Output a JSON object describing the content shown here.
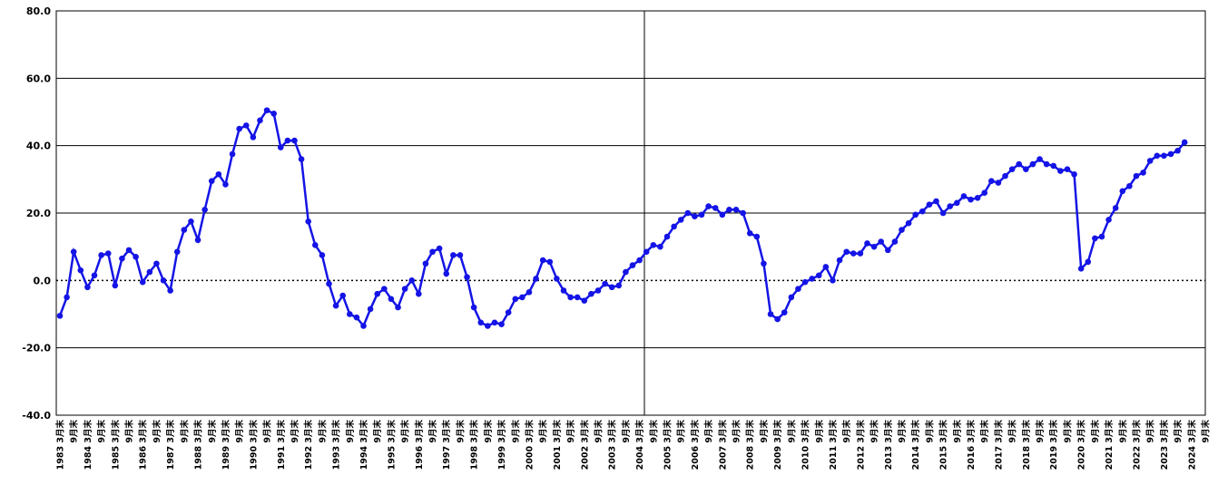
{
  "chart_data": {
    "type": "line",
    "categories": [
      "1983 3月末",
      null,
      "9月末",
      null,
      "1984 3月末",
      null,
      "9月末",
      null,
      "1985 3月末",
      null,
      "9月末",
      null,
      "1986 3月末",
      null,
      "9月末",
      null,
      "1987 3月末",
      null,
      "9月末",
      null,
      "1988 3月末",
      null,
      "9月末",
      null,
      "1989 3月末",
      null,
      "9月末",
      null,
      "1990 3月末",
      null,
      "9月末",
      null,
      "1991 3月末",
      null,
      "9月末",
      null,
      "1992 3月末",
      null,
      "9月末",
      null,
      "1993 3月末",
      null,
      "9月末",
      null,
      "1994 3月末",
      null,
      "9月末",
      null,
      "1995 3月末",
      null,
      "9月末",
      null,
      "1996 3月末",
      null,
      "9月末",
      null,
      "1997 3月末",
      null,
      "9月末",
      null,
      "1998 3月末",
      null,
      "9月末",
      null,
      "1999 3月末",
      null,
      "9月末",
      null,
      "2000 3月末",
      null,
      "9月末",
      null,
      "2001 3月末",
      null,
      "9月末",
      null,
      "2002 3月末",
      null,
      "9月末",
      null,
      "2003 3月末",
      null,
      "9月末",
      null,
      "2004 3月末",
      null,
      "9月末",
      null,
      "2005 3月末",
      null,
      "9月末",
      null,
      "2006 3月末",
      null,
      "9月末",
      null,
      "2007 3月末",
      null,
      "9月末",
      null,
      "2008 3月末",
      null,
      "9月末",
      null,
      "2009 3月末",
      null,
      "9月末",
      null,
      "2010 3月末",
      null,
      "9月末",
      null,
      "2011 3月末",
      null,
      "9月末",
      null,
      "2012 3月末",
      null,
      "9月末",
      null,
      "2013 3月末",
      null,
      "9月末",
      null,
      "2014 3月末",
      null,
      "9月末",
      null,
      "2015 3月末",
      null,
      "9月末",
      null,
      "2016 3月末",
      null,
      "9月末",
      null,
      "2017 3月末",
      null,
      "9月末",
      null,
      "2018 3月末",
      null,
      "9月末",
      null,
      "2019 3月末",
      null,
      "9月末",
      null,
      "2020 3月末",
      null,
      "9月末",
      null,
      "2021 3月末",
      null,
      "9月末",
      null,
      "2022 3月末",
      null,
      "9月末",
      null,
      "2023 3月末",
      null,
      "9月末",
      null,
      "2024 3月末",
      null,
      "9月末"
    ],
    "series": [
      {
        "color": "#1414e6",
        "values": [
          -10.5,
          -5,
          8.5,
          3,
          -2,
          1.5,
          7.5,
          8,
          -1.5,
          6.5,
          9,
          7,
          -0.5,
          2.5,
          5,
          0,
          -3,
          8.5,
          15,
          17.5,
          12,
          21,
          29.5,
          31.5,
          28.5,
          37.5,
          45,
          46,
          42.5,
          47.5,
          50.5,
          49.5,
          39.5,
          41.5,
          41.5,
          36,
          17.5,
          10.5,
          7.5,
          -1,
          -7.5,
          -4.5,
          -10,
          -11,
          -13.5,
          -8.5,
          -4,
          -2.5,
          -5.5,
          -8,
          -2.5,
          0,
          -4,
          5,
          8.5,
          9.5,
          2,
          7.5,
          7.5,
          1,
          -8,
          -12.5,
          -13.5,
          -12.5,
          -13,
          -9.5,
          -5.5,
          -5,
          -3.5,
          0.5,
          6,
          5.5,
          0.5,
          -3,
          -5,
          -5,
          -6,
          -4,
          -3,
          -1,
          -2,
          -1.5,
          2.5,
          4.5,
          6,
          8.5,
          10.5,
          10,
          13,
          16,
          18,
          20,
          19,
          19.5,
          22,
          21.5,
          19.5,
          21,
          21,
          20,
          14,
          13,
          5,
          -10,
          -11.5,
          -9.5,
          -5,
          -2.5,
          -0.5,
          0.5,
          1.5,
          4,
          0,
          6,
          8.5,
          8,
          8,
          11,
          10,
          11.5,
          9,
          11.5,
          15,
          17,
          19.5,
          20.5,
          22.5,
          23.5,
          20,
          22,
          23,
          25,
          24,
          24.5,
          26,
          29.5,
          29,
          31,
          33,
          34.5,
          33,
          34.5,
          36,
          34.5,
          34,
          32.5,
          33,
          31.5,
          3.5,
          5.5,
          12.5,
          13,
          18,
          21.5,
          26.5,
          28,
          31,
          32,
          35.5,
          37,
          37,
          37.5,
          38.5,
          41,
          null,
          null,
          null
        ]
      }
    ],
    "ylim": [
      -40,
      80
    ],
    "yticks": [
      {
        "value": -40,
        "label": "-40.0"
      },
      {
        "value": -20,
        "label": "-20.0"
      },
      {
        "value": 0,
        "label": "0.0"
      },
      {
        "value": 20,
        "label": "20.0"
      },
      {
        "value": 40,
        "label": "40.0"
      },
      {
        "value": 60,
        "label": "60.0"
      },
      {
        "value": 80,
        "label": "80.0"
      }
    ],
    "grid": true
  }
}
